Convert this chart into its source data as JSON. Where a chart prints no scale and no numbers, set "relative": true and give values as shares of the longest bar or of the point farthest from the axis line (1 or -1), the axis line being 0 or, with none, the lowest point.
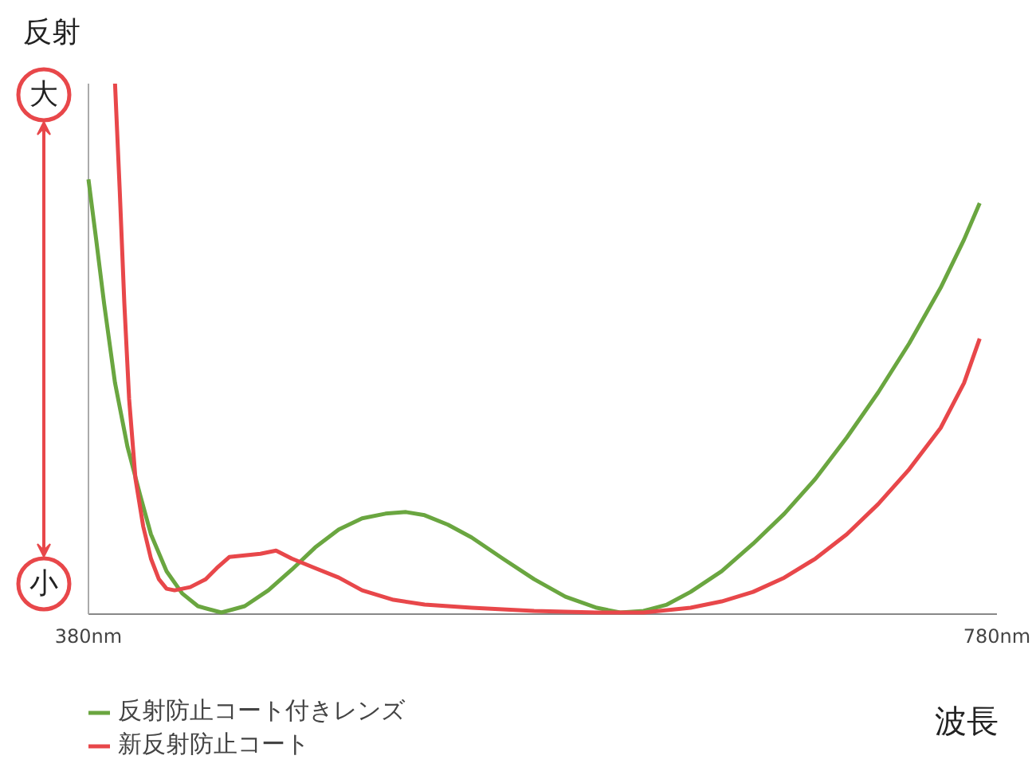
{
  "chart_data": {
    "type": "line",
    "relative": true,
    "ylabel": "反射",
    "xlabel": "波長",
    "annotations": [
      "大",
      "小"
    ],
    "xlim": [
      380,
      780
    ],
    "xticks": [
      {
        "value": 380,
        "label": "380nm"
      },
      {
        "value": 780,
        "label": "780nm"
      }
    ],
    "legend": "bottom left",
    "line_style": "solid",
    "series": [
      {
        "name": "反射防止コート付きレンズ",
        "color": "#6aa640",
        "x": [
          380,
          383.4,
          386.9,
          391.7,
          397.2,
          402.7,
          407.5,
          414.4,
          421.3,
          428.2,
          438.5,
          448.8,
          459.2,
          469.5,
          479.8,
          490.2,
          500.5,
          510.8,
          519.8,
          528.0,
          538.3,
          548.7,
          562.4,
          576.2,
          590.0,
          603.8,
          614.1,
          624.4,
          634.7,
          645.1,
          658.8,
          672.6,
          686.4,
          700.1,
          713.9,
          727.7,
          741.4,
          755.2,
          765.5,
          772.4
        ],
        "values": [
          0.819,
          0.705,
          0.584,
          0.434,
          0.313,
          0.223,
          0.148,
          0.078,
          0.036,
          0.012,
          0,
          0.012,
          0.042,
          0.081,
          0.123,
          0.157,
          0.178,
          0.187,
          0.19,
          0.184,
          0.166,
          0.142,
          0.102,
          0.063,
          0.03,
          0.009,
          0,
          0.003,
          0.015,
          0.039,
          0.078,
          0.13,
          0.187,
          0.253,
          0.331,
          0.416,
          0.509,
          0.614,
          0.705,
          0.774
        ]
      },
      {
        "name": "新反射防止コート",
        "color": "#e8474a",
        "x": [
          391.7,
          393.8,
          395.8,
          397.9,
          400.7,
          404.1,
          407.5,
          411.0,
          414.4,
          417.9,
          424.8,
          431.6,
          436.5,
          442.0,
          448.8,
          455.7,
          462.6,
          469.5,
          479.8,
          490.2,
          500.5,
          514.3,
          528.0,
          548.7,
          576.2,
          603.8,
          624.4,
          645.1,
          658.8,
          672.6,
          686.4,
          700.1,
          713.9,
          727.7,
          741.4,
          755.2,
          765.5,
          772.4
        ],
        "values": [
          1.0,
          0.795,
          0.584,
          0.404,
          0.253,
          0.163,
          0.102,
          0.063,
          0.045,
          0.042,
          0.048,
          0.063,
          0.084,
          0.105,
          0.108,
          0.111,
          0.117,
          0.102,
          0.084,
          0.066,
          0.042,
          0.024,
          0.015,
          0.009,
          0.003,
          0,
          0,
          0.009,
          0.021,
          0.039,
          0.066,
          0.102,
          0.148,
          0.205,
          0.271,
          0.349,
          0.434,
          0.518
        ]
      }
    ]
  }
}
